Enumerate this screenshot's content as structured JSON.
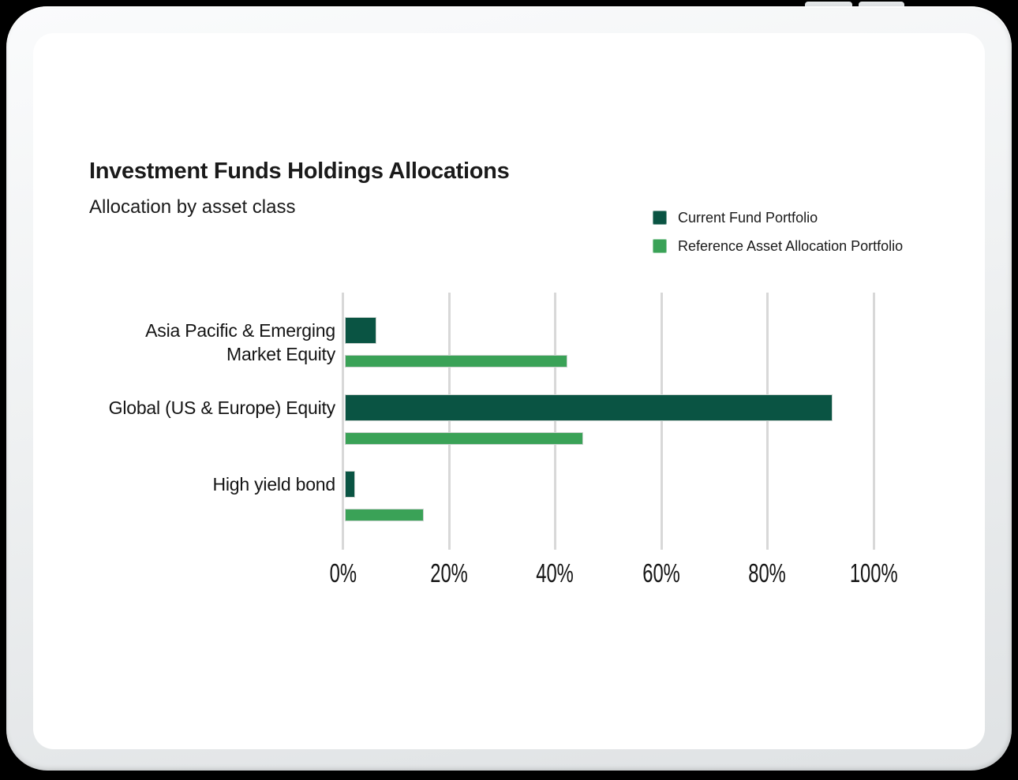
{
  "title": "Investment Funds Holdings Allocations",
  "subtitle": "Allocation by asset class",
  "legend": {
    "items": [
      {
        "label": "Current Fund Portfolio",
        "color": "#0a5443"
      },
      {
        "label": "Reference Asset Allocation Portfolio",
        "color": "#3aa257"
      }
    ]
  },
  "chart_data": {
    "type": "bar",
    "orientation": "horizontal",
    "title": "Investment Funds Holdings Allocations",
    "subtitle": "Allocation by asset class",
    "categories": [
      "Asia Pacific & Emerging Market Equity",
      "Global (US & Europe) Equity",
      "High yield bond"
    ],
    "categories_display": [
      [
        "Asia Pacific & Emerging",
        "Market Equity"
      ],
      [
        "Global (US & Europe) Equity"
      ],
      [
        "High yield bond"
      ]
    ],
    "series": [
      {
        "name": "Current Fund Portfolio",
        "color": "#0a5443",
        "values": [
          6,
          92,
          2
        ]
      },
      {
        "name": "Reference Asset Allocation Portfolio",
        "color": "#3aa257",
        "values": [
          42,
          45,
          15
        ]
      }
    ],
    "x_ticks": [
      "0%",
      "20%",
      "40%",
      "60%",
      "80%",
      "100%"
    ],
    "xlim": [
      0,
      100
    ],
    "grid": "vertical",
    "gridline_color": "#d8d8d8",
    "legend_position": "top-right",
    "unit": "%"
  },
  "colors": {
    "background": "#000000",
    "bezel": "#eef0f1",
    "screen": "#ffffff",
    "text": "#1a1a1a",
    "current_fund": "#0a5443",
    "reference_allocation": "#3aa257",
    "gridline": "#d8d8d8"
  }
}
